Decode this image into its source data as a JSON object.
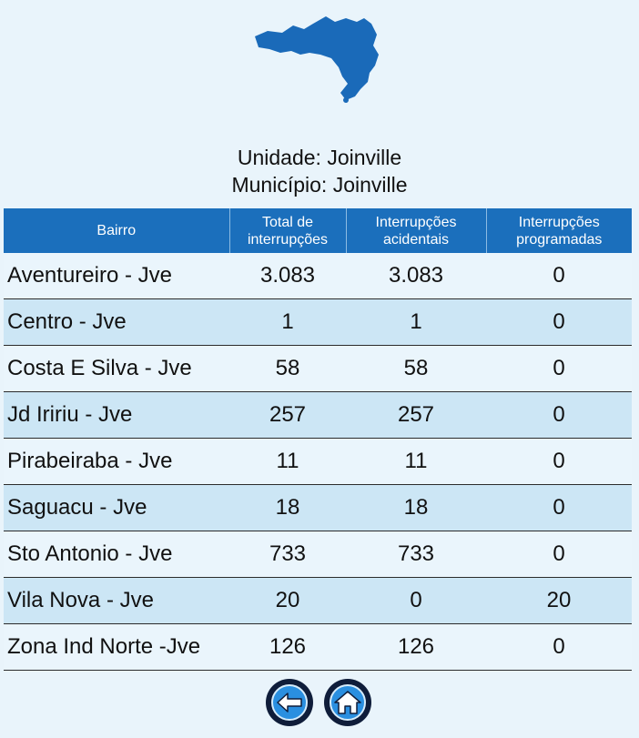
{
  "header": {
    "unidade": "Unidade: Joinville",
    "municipio": "Município: Joinville"
  },
  "icons": {
    "map": "santa-catarina-map-icon",
    "back": "back-arrow-icon",
    "home": "home-icon"
  },
  "colors": {
    "header_bg": "#1b6fbc",
    "row_light": "#eaf5fc",
    "row_dark": "#cce6f5",
    "page_bg": "#e9f4fb",
    "map_fill": "#1a6ab9"
  },
  "table": {
    "columns": [
      {
        "l1": "Bairro",
        "l2": ""
      },
      {
        "l1": "Total de",
        "l2": "interrupções"
      },
      {
        "l1": "Interrupções",
        "l2": "acidentais"
      },
      {
        "l1": "Interrupções",
        "l2": "programadas"
      }
    ],
    "rows": [
      {
        "bairro": "Aventureiro - Jve",
        "total": "3.083",
        "acidentais": "3.083",
        "programadas": "0"
      },
      {
        "bairro": "Centro - Jve",
        "total": "1",
        "acidentais": "1",
        "programadas": "0"
      },
      {
        "bairro": "Costa E Silva - Jve",
        "total": "58",
        "acidentais": "58",
        "programadas": "0"
      },
      {
        "bairro": "Jd Iririu - Jve",
        "total": "257",
        "acidentais": "257",
        "programadas": "0"
      },
      {
        "bairro": "Pirabeiraba - Jve",
        "total": "11",
        "acidentais": "11",
        "programadas": "0"
      },
      {
        "bairro": "Saguacu - Jve",
        "total": "18",
        "acidentais": "18",
        "programadas": "0"
      },
      {
        "bairro": "Sto Antonio - Jve",
        "total": "733",
        "acidentais": "733",
        "programadas": "0"
      },
      {
        "bairro": "Vila Nova - Jve",
        "total": "20",
        "acidentais": "0",
        "programadas": "20"
      },
      {
        "bairro": "Zona Ind Norte -Jve",
        "total": "126",
        "acidentais": "126",
        "programadas": "0"
      }
    ]
  }
}
